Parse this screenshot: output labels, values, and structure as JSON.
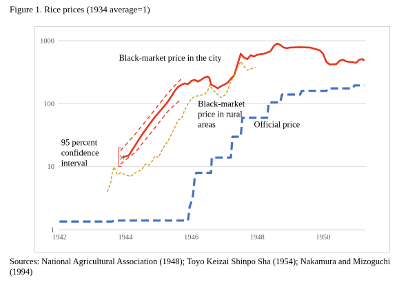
{
  "figure_title": "Figure 1. Rice prices (1934 average=1)",
  "sources": "Sources: National Agricultural Association (1948); Toyo Keizai Shinpo Sha (1954); Nakamura and Mizoguchi (1994)",
  "chart_data": {
    "type": "line",
    "title": "",
    "xlabel": "",
    "ylabel": "",
    "x_ticks": [
      "1942",
      "1944",
      "1946",
      "1948",
      "1950"
    ],
    "y_ticks": [
      "1",
      "10",
      "100",
      "1000"
    ],
    "xlim": [
      1941.95,
      1951.3
    ],
    "ylim": [
      1,
      1000
    ],
    "y_scale": "log",
    "grid": "horizontal",
    "legend": "none",
    "annotations": [
      {
        "text_lines": [
          "Black-market price in the city"
        ],
        "anchor_x": 1943.8,
        "anchor_y": 480
      },
      {
        "text_lines": [
          "Black-market",
          "price in rural",
          "areas"
        ],
        "anchor_x": 1946.2,
        "anchor_y": 90
      },
      {
        "text_lines": [
          "Official price"
        ],
        "anchor_x": 1947.9,
        "anchor_y": 42
      },
      {
        "text_lines": [
          "95 percent",
          "confidence",
          "interval"
        ],
        "anchor_x": 1942.05,
        "anchor_y": 22
      }
    ],
    "series": [
      {
        "key": "city",
        "color": "#e8351c",
        "style": "solid",
        "points": [
          [
            1943.9,
            14
          ],
          [
            1944.1,
            15
          ],
          [
            1944.3,
            22
          ],
          [
            1944.5,
            32
          ],
          [
            1944.7,
            45
          ],
          [
            1944.9,
            62
          ],
          [
            1945.1,
            82
          ],
          [
            1945.3,
            110
          ],
          [
            1945.5,
            160
          ],
          [
            1945.6,
            185
          ],
          [
            1945.7,
            200
          ],
          [
            1945.8,
            210
          ],
          [
            1945.9,
            205
          ],
          [
            1946.0,
            230
          ],
          [
            1946.1,
            240
          ],
          [
            1946.2,
            225
          ],
          [
            1946.3,
            240
          ],
          [
            1946.4,
            260
          ],
          [
            1946.5,
            270
          ],
          [
            1946.55,
            255
          ],
          [
            1946.6,
            200
          ],
          [
            1946.7,
            190
          ],
          [
            1946.8,
            175
          ],
          [
            1946.9,
            190
          ],
          [
            1947.0,
            200
          ],
          [
            1947.1,
            215
          ],
          [
            1947.2,
            250
          ],
          [
            1947.3,
            280
          ],
          [
            1947.4,
            420
          ],
          [
            1947.5,
            620
          ],
          [
            1947.6,
            540
          ],
          [
            1947.7,
            510
          ],
          [
            1947.8,
            590
          ],
          [
            1947.9,
            560
          ],
          [
            1948.0,
            600
          ],
          [
            1948.2,
            620
          ],
          [
            1948.4,
            680
          ],
          [
            1948.5,
            820
          ],
          [
            1948.6,
            900
          ],
          [
            1948.7,
            860
          ],
          [
            1948.8,
            780
          ],
          [
            1948.9,
            760
          ],
          [
            1949.0,
            780
          ],
          [
            1949.3,
            790
          ],
          [
            1949.6,
            780
          ],
          [
            1949.8,
            730
          ],
          [
            1949.9,
            700
          ],
          [
            1950.0,
            620
          ],
          [
            1950.1,
            460
          ],
          [
            1950.2,
            420
          ],
          [
            1950.4,
            425
          ],
          [
            1950.5,
            480
          ],
          [
            1950.6,
            500
          ],
          [
            1950.7,
            470
          ],
          [
            1950.8,
            460
          ],
          [
            1950.9,
            455
          ],
          [
            1951.0,
            445
          ],
          [
            1951.1,
            500
          ],
          [
            1951.2,
            510
          ],
          [
            1951.25,
            480
          ]
        ]
      },
      {
        "key": "ci_upper",
        "color": "#e8351c",
        "style": "dashed",
        "points": [
          [
            1943.85,
            18
          ],
          [
            1944.3,
            33
          ],
          [
            1944.8,
            70
          ],
          [
            1945.3,
            150
          ],
          [
            1945.7,
            250
          ]
        ]
      },
      {
        "key": "ci_lower",
        "color": "#e8351c",
        "style": "dashed",
        "points": [
          [
            1943.85,
            11
          ],
          [
            1944.3,
            17
          ],
          [
            1944.8,
            36
          ],
          [
            1945.3,
            77
          ],
          [
            1945.7,
            120
          ]
        ]
      },
      {
        "key": "rural",
        "color": "#c9a227",
        "style": "dashed",
        "points": [
          [
            1943.45,
            4
          ],
          [
            1943.55,
            5.5
          ],
          [
            1943.6,
            8
          ],
          [
            1943.65,
            10
          ],
          [
            1943.75,
            7.5
          ],
          [
            1943.85,
            8
          ],
          [
            1944.0,
            7.5
          ],
          [
            1944.15,
            7
          ],
          [
            1944.3,
            8
          ],
          [
            1944.5,
            9
          ],
          [
            1944.6,
            11
          ],
          [
            1944.7,
            10.5
          ],
          [
            1944.8,
            12
          ],
          [
            1944.9,
            15
          ],
          [
            1945.0,
            14
          ],
          [
            1945.1,
            18
          ],
          [
            1945.2,
            22
          ],
          [
            1945.3,
            26
          ],
          [
            1945.4,
            33
          ],
          [
            1945.5,
            42
          ],
          [
            1945.6,
            55
          ],
          [
            1945.7,
            58
          ],
          [
            1945.8,
            80
          ],
          [
            1945.9,
            100
          ],
          [
            1946.0,
            120
          ],
          [
            1946.1,
            130
          ],
          [
            1946.25,
            135
          ],
          [
            1946.4,
            140
          ],
          [
            1946.5,
            160
          ],
          [
            1946.55,
            200
          ],
          [
            1946.65,
            165
          ],
          [
            1946.75,
            150
          ],
          [
            1946.9,
            125
          ],
          [
            1947.0,
            135
          ],
          [
            1947.1,
            160
          ],
          [
            1947.2,
            230
          ],
          [
            1947.3,
            275
          ],
          [
            1947.4,
            370
          ],
          [
            1947.5,
            470
          ],
          [
            1947.6,
            390
          ],
          [
            1947.7,
            340
          ],
          [
            1947.85,
            365
          ],
          [
            1947.95,
            380
          ]
        ]
      },
      {
        "key": "official",
        "color": "#4472c4",
        "style": "dashed",
        "points": [
          [
            1942.0,
            1.35
          ],
          [
            1943.6,
            1.35
          ],
          [
            1943.65,
            1.4
          ],
          [
            1945.9,
            1.4
          ],
          [
            1945.95,
            2.3
          ],
          [
            1946.0,
            2.8
          ],
          [
            1946.05,
            3.5
          ],
          [
            1946.1,
            6.5
          ],
          [
            1946.15,
            8
          ],
          [
            1946.6,
            8
          ],
          [
            1946.62,
            14
          ],
          [
            1947.2,
            14
          ],
          [
            1947.25,
            30
          ],
          [
            1947.5,
            30
          ],
          [
            1947.55,
            60
          ],
          [
            1947.7,
            60
          ],
          [
            1948.0,
            60
          ],
          [
            1948.3,
            60
          ],
          [
            1948.35,
            105
          ],
          [
            1948.7,
            105
          ],
          [
            1948.75,
            140
          ],
          [
            1949.3,
            140
          ],
          [
            1949.35,
            160
          ],
          [
            1950.1,
            160
          ],
          [
            1950.15,
            175
          ],
          [
            1950.9,
            175
          ],
          [
            1950.95,
            195
          ],
          [
            1951.25,
            195
          ]
        ]
      }
    ]
  }
}
